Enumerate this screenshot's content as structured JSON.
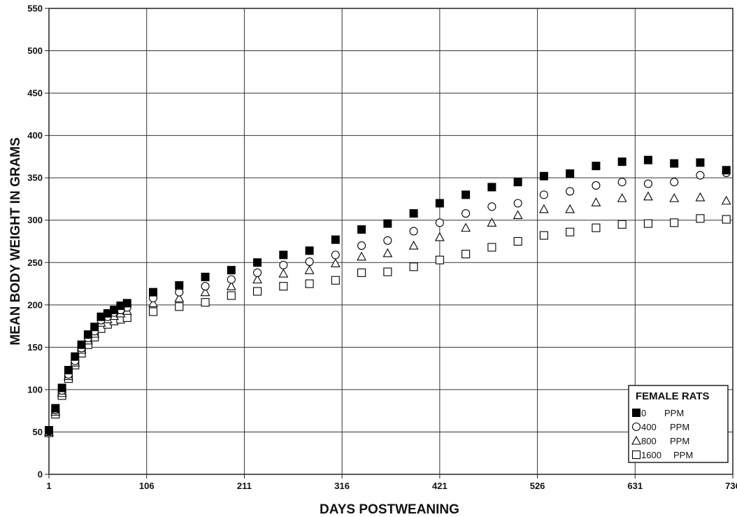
{
  "chart_data": {
    "type": "scatter",
    "xlabel": "DAYS POSTWEANING",
    "ylabel": "MEAN BODY WEIGHT IN GRAMS",
    "xlim": [
      1,
      736
    ],
    "ylim": [
      0,
      550
    ],
    "xticks": [
      1,
      106,
      211,
      316,
      421,
      526,
      631,
      736
    ],
    "yticks": [
      0,
      50,
      100,
      150,
      200,
      250,
      300,
      350,
      400,
      450,
      500,
      550
    ],
    "grid": true,
    "legend": {
      "title": "FEMALE RATS",
      "placement": "bottom-right",
      "entries": [
        {
          "dose": "0",
          "unit": "PPM"
        },
        {
          "dose": "400",
          "unit": "PPM"
        },
        {
          "dose": "800",
          "unit": "PPM"
        },
        {
          "dose": "1600",
          "unit": "PPM"
        }
      ]
    },
    "x": [
      1,
      8,
      15,
      22,
      29,
      36,
      43,
      50,
      57,
      64,
      71,
      78,
      85,
      113,
      141,
      169,
      197,
      225,
      253,
      281,
      309,
      337,
      365,
      393,
      421,
      449,
      477,
      505,
      533,
      561,
      589,
      617,
      645,
      673,
      701,
      729
    ],
    "series": [
      {
        "name": "0 PPM",
        "marker": "filled-square",
        "values": [
          52,
          78,
          102,
          123,
          139,
          153,
          165,
          174,
          186,
          190,
          194,
          199,
          202,
          215,
          223,
          233,
          241,
          250,
          259,
          264,
          277,
          289,
          296,
          308,
          320,
          330,
          339,
          345,
          352,
          355,
          364,
          369,
          371,
          367,
          368,
          359
        ]
      },
      {
        "name": "400 PPM",
        "marker": "open-circle",
        "values": [
          51,
          76,
          99,
          118,
          134,
          149,
          161,
          169,
          182,
          186,
          191,
          194,
          197,
          208,
          215,
          222,
          230,
          238,
          247,
          251,
          259,
          270,
          276,
          287,
          297,
          308,
          316,
          320,
          330,
          334,
          341,
          345,
          343,
          345,
          353,
          356
        ]
      },
      {
        "name": "800 PPM",
        "marker": "open-triangle",
        "values": [
          50,
          74,
          96,
          116,
          132,
          147,
          158,
          166,
          179,
          183,
          187,
          190,
          193,
          202,
          208,
          215,
          222,
          230,
          237,
          241,
          249,
          257,
          261,
          270,
          280,
          291,
          297,
          306,
          313,
          313,
          321,
          326,
          328,
          326,
          327,
          323
        ]
      },
      {
        "name": "1600 PPM",
        "marker": "open-square",
        "values": [
          49,
          71,
          93,
          113,
          129,
          143,
          153,
          162,
          172,
          177,
          181,
          183,
          185,
          192,
          198,
          203,
          211,
          216,
          222,
          225,
          229,
          238,
          239,
          245,
          253,
          260,
          268,
          275,
          282,
          286,
          291,
          295,
          296,
          297,
          302,
          301
        ]
      }
    ]
  }
}
